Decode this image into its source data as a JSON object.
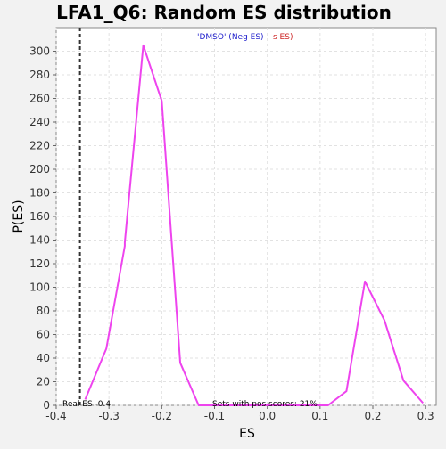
{
  "chart_data": {
    "type": "line",
    "title": "LFA1_Q6: Random ES distribution",
    "xlabel": "ES",
    "ylabel": "P(ES)",
    "xlim": [
      -0.4,
      0.32
    ],
    "ylim": [
      0,
      320
    ],
    "xticks": [
      -0.4,
      -0.3,
      -0.2,
      -0.1,
      0.0,
      0.1,
      0.2,
      0.3
    ],
    "xtick_labels": [
      "-0.4",
      "-0.3",
      "-0.2",
      "-0.1",
      "0.0",
      "0.1",
      "0.2",
      "0.3"
    ],
    "yticks": [
      0,
      20,
      40,
      60,
      80,
      100,
      120,
      140,
      160,
      180,
      200,
      220,
      240,
      260,
      280,
      300
    ],
    "ytick_labels": [
      "0",
      "20",
      "40",
      "60",
      "80",
      "100",
      "120",
      "140",
      "160",
      "180",
      "200",
      "220",
      "240",
      "260",
      "280",
      "300"
    ],
    "grid": true,
    "legend": {
      "placement": "top-center",
      "neg_label": "'DMSO' (Neg ES)",
      "pos_label_visible": "s ES)",
      "neg_color": "#2222cc",
      "pos_color": "#cc2222"
    },
    "series": [
      {
        "color": "#ee44ee",
        "x": [
          -0.345,
          -0.305,
          -0.27,
          -0.27,
          -0.235,
          -0.2,
          -0.165,
          -0.13,
          -0.095,
          -0.06,
          0.02,
          0.08,
          0.115,
          0.15,
          0.185,
          0.222,
          0.258,
          0.295
        ],
        "y": [
          5,
          48,
          135,
          138,
          305,
          258,
          36,
          0,
          0,
          0,
          0,
          0,
          0,
          12,
          105,
          72,
          21,
          2
        ]
      }
    ],
    "real_es": {
      "value": -0.355,
      "label": "Real ES -0.4",
      "color": "#333333"
    },
    "annotation_pos_scores": "Sets with pos scores: 21%"
  }
}
